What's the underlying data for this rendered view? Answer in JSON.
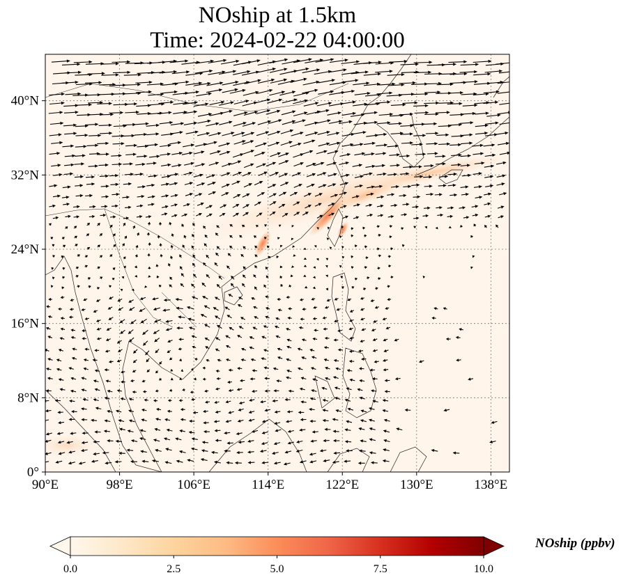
{
  "map": {
    "title_line1": "NOship at 1.5km",
    "title_line2": "Time: 2024-02-22 04:00:00",
    "lon_range": [
      90,
      140
    ],
    "lat_range": [
      0,
      45
    ],
    "lon_ticks": [
      90,
      98,
      106,
      114,
      122,
      130,
      138
    ],
    "lon_tick_labels": [
      "90°E",
      "98°E",
      "106°E",
      "114°E",
      "122°E",
      "130°E",
      "138°E"
    ],
    "lat_ticks": [
      0,
      8,
      16,
      24,
      32,
      40
    ],
    "lat_tick_labels": [
      "0°",
      "8°N",
      "16°N",
      "24°N",
      "32°N",
      "40°N"
    ],
    "gridlines": true,
    "coastlines": true,
    "variable": "NOship",
    "vectors": "wind at 1.5km",
    "background_color": "#fff5eb"
  },
  "colorbar": {
    "label": "NOship (ppbv)",
    "range": [
      0.0,
      10.0
    ],
    "ticks": [
      0.0,
      2.5,
      5.0,
      7.5,
      10.0
    ],
    "tick_labels": [
      "0.0",
      "2.5",
      "5.0",
      "7.5",
      "10.0"
    ],
    "extend": "both",
    "colormap": "OrRd",
    "colors": [
      "#fff7ec",
      "#fee8c8",
      "#fdd49e",
      "#fdbb84",
      "#fc8d59",
      "#ef6548",
      "#d7301f",
      "#b30000",
      "#7f0000"
    ]
  },
  "concentration_features": [
    {
      "name": "taiwan-strait-band",
      "lon": 119.5,
      "lat": 27.5,
      "value": 4.0
    },
    {
      "name": "pearl-river-delta",
      "lon": 113.6,
      "lat": 23.0,
      "value": 3.0
    },
    {
      "name": "east-china-sea-lane",
      "lon": 124.5,
      "lat": 29.3,
      "value": 1.6
    },
    {
      "name": "korea-japan-lane",
      "lon": 132.0,
      "lat": 31.5,
      "value": 1.2
    }
  ]
}
